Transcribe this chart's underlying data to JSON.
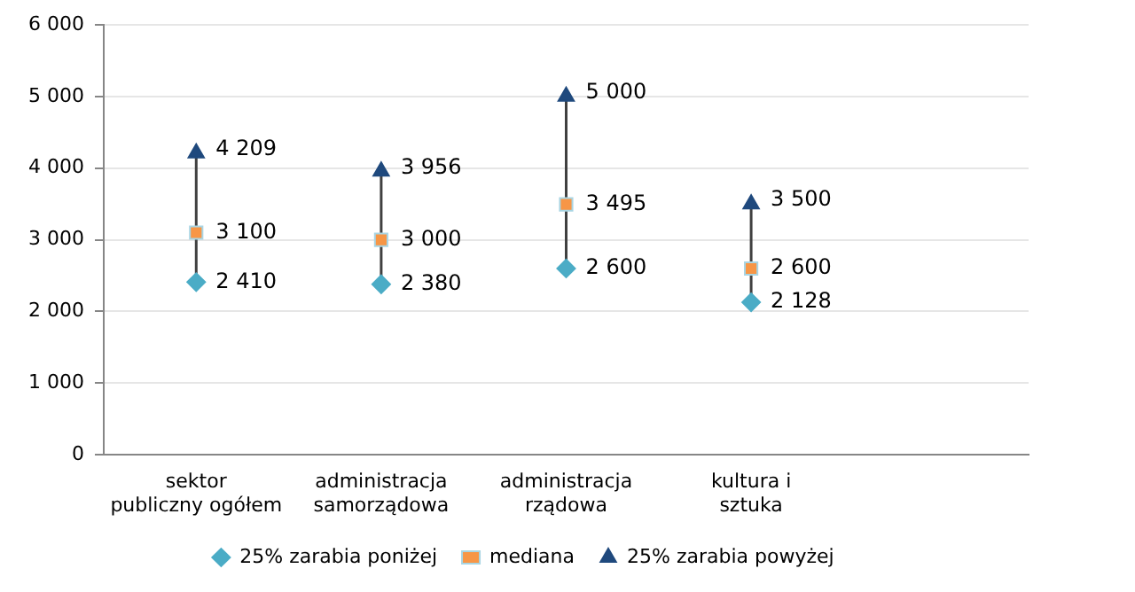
{
  "chart_data": {
    "type": "scatter",
    "categories": [
      "sektor publiczny ogółem",
      "administracja samorządowa",
      "administracja rządowa",
      "kultura i sztuka",
      null
    ],
    "series": [
      {
        "name": "25% zarabia poniżej",
        "color": "#4bacc6",
        "marker": "diamond",
        "values": [
          2410,
          2380,
          2600,
          2128,
          null
        ],
        "value_labels": [
          "2 410",
          "2 380",
          "2 600",
          "2 128",
          null
        ]
      },
      {
        "name": "mediana",
        "color": "#f79646",
        "marker": "square",
        "values": [
          3100,
          3000,
          3495,
          2600,
          null
        ],
        "value_labels": [
          "3 100",
          "3 000",
          "3 495",
          "2 600",
          null
        ]
      },
      {
        "name": "25% zarabia powyżej",
        "color": "#1f497d",
        "marker": "triangle",
        "values": [
          4209,
          3956,
          5000,
          3500,
          null
        ],
        "value_labels": [
          "4 209",
          "3 956",
          "5 000",
          "3 500",
          null
        ]
      }
    ],
    "ylim": [
      0,
      6000
    ],
    "yticks": [
      {
        "value": 0,
        "label": "0"
      },
      {
        "value": 1000,
        "label": "1 000"
      },
      {
        "value": 2000,
        "label": "2 000"
      },
      {
        "value": 3000,
        "label": "3 000"
      },
      {
        "value": 4000,
        "label": "4 000"
      },
      {
        "value": 5000,
        "label": "5 000"
      },
      {
        "value": 6000,
        "label": "6 000"
      }
    ],
    "grid": "y",
    "legend": "bottom"
  }
}
